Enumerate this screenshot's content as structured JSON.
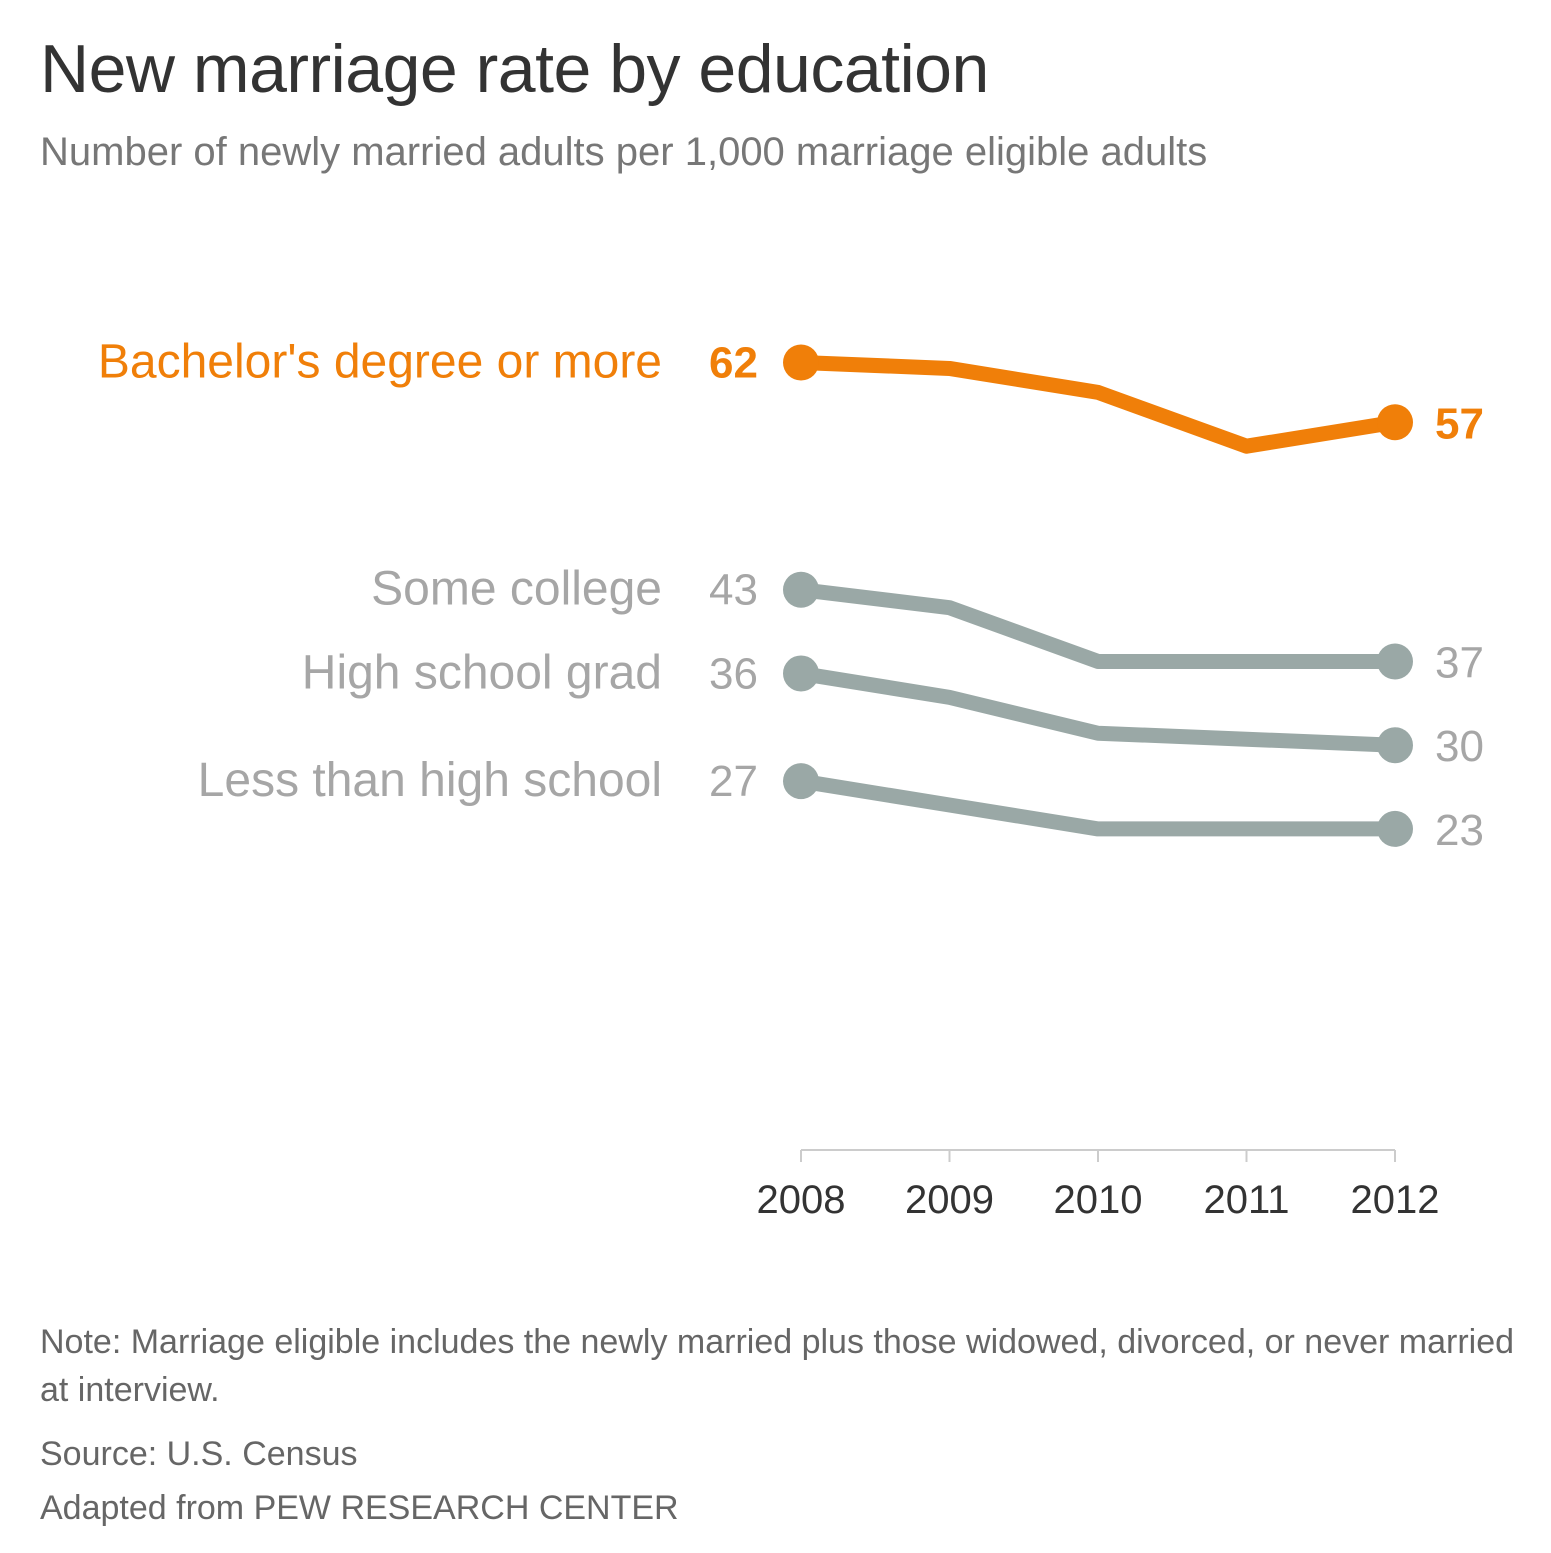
{
  "title": "New marriage rate by education",
  "subtitle": "Number of newly married adults per 1,000 marriage eligible adults",
  "chart_data": {
    "type": "line",
    "x": [
      "2008",
      "2009",
      "2010",
      "2011",
      "2012"
    ],
    "ylim": [
      0,
      70
    ],
    "grid": false,
    "legend": "inline-left",
    "series": [
      {
        "name": "Bachelor's degree or more",
        "values": [
          62,
          61.5,
          59.5,
          55,
          57
        ],
        "start_label": "62",
        "end_label": "57",
        "color": "#f07f09",
        "label_color": "#f07f09",
        "bold": true
      },
      {
        "name": "Some college",
        "values": [
          43,
          41.5,
          37,
          37,
          37
        ],
        "start_label": "43",
        "end_label": "37",
        "color": "#9aa8a6",
        "label_color": "#a6a6a6",
        "bold": false
      },
      {
        "name": "High school grad",
        "values": [
          36,
          34,
          31,
          30.5,
          30
        ],
        "start_label": "36",
        "end_label": "30",
        "color": "#9aa8a6",
        "label_color": "#a6a6a6",
        "bold": false
      },
      {
        "name": "Less than high school",
        "values": [
          27,
          25,
          23,
          23,
          23
        ],
        "start_label": "27",
        "end_label": "23",
        "color": "#9aa8a6",
        "label_color": "#a6a6a6",
        "bold": false
      }
    ]
  },
  "footer": {
    "note": "Note: Marriage eligible includes the newly married plus those widowed, divorced, or never married at interview.",
    "source": "Source: U.S. Census",
    "credit": "Adapted from PEW RESEARCH CENTER"
  }
}
